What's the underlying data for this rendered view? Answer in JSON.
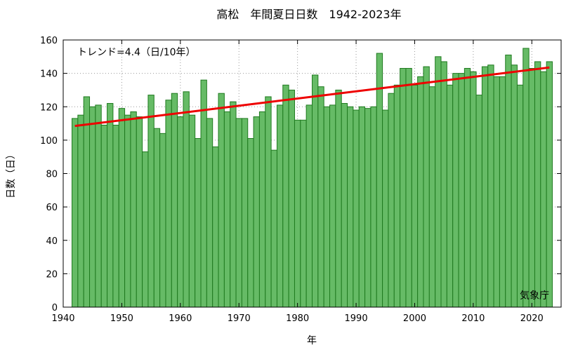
{
  "chart_data": {
    "type": "bar",
    "title": "高松　年間夏日日数　1942-2023年",
    "xlabel": "年",
    "ylabel": "日数（日）",
    "xlim": [
      1940,
      2025
    ],
    "ylim": [
      0,
      160
    ],
    "x_ticks": [
      1940,
      1950,
      1960,
      1970,
      1980,
      1990,
      2000,
      2010,
      2020
    ],
    "y_ticks": [
      0,
      20,
      40,
      60,
      80,
      100,
      120,
      140,
      160
    ],
    "grid": true,
    "bar_color": "#66bb66",
    "bar_edge_color": "#1f7a1f",
    "trend_color": "#ee0000",
    "trend_label": "トレンド=4.4（日/10年）",
    "trend_line": {
      "x": [
        1942,
        2023
      ],
      "y": [
        108.5,
        143.5
      ]
    },
    "source_label": "気象庁",
    "x": [
      1942,
      1943,
      1944,
      1945,
      1946,
      1947,
      1948,
      1949,
      1950,
      1951,
      1952,
      1953,
      1954,
      1955,
      1956,
      1957,
      1958,
      1959,
      1960,
      1961,
      1962,
      1963,
      1964,
      1965,
      1966,
      1967,
      1968,
      1969,
      1970,
      1971,
      1972,
      1973,
      1974,
      1975,
      1976,
      1977,
      1978,
      1979,
      1980,
      1981,
      1982,
      1983,
      1984,
      1985,
      1986,
      1987,
      1988,
      1989,
      1990,
      1991,
      1992,
      1993,
      1994,
      1995,
      1996,
      1997,
      1998,
      1999,
      2000,
      2001,
      2002,
      2003,
      2004,
      2005,
      2006,
      2007,
      2008,
      2009,
      2010,
      2011,
      2012,
      2013,
      2014,
      2015,
      2016,
      2017,
      2018,
      2019,
      2020,
      2021,
      2022,
      2023
    ],
    "values": [
      113,
      115,
      126,
      120,
      121,
      109,
      122,
      109,
      119,
      115,
      117,
      114,
      93,
      127,
      107,
      104,
      124,
      128,
      114,
      129,
      115,
      101,
      136,
      113,
      96,
      128,
      117,
      123,
      113,
      113,
      101,
      114,
      117,
      126,
      94,
      121,
      133,
      130,
      112,
      112,
      121,
      139,
      132,
      120,
      121,
      130,
      122,
      120,
      118,
      120,
      119,
      120,
      152,
      118,
      128,
      133,
      143,
      143,
      133,
      138,
      144,
      132,
      150,
      147,
      133,
      140,
      140,
      143,
      141,
      127,
      144,
      145,
      138,
      138,
      151,
      145,
      133,
      155,
      143,
      147,
      141,
      147
    ]
  }
}
